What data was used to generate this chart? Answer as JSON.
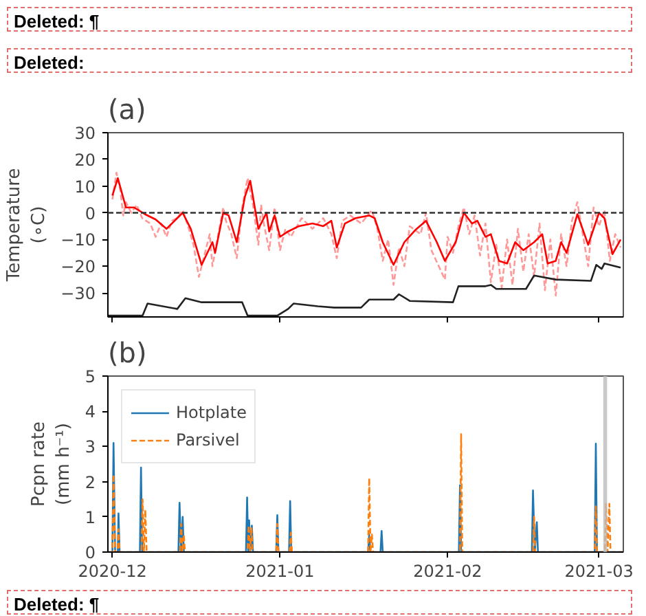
{
  "chart_data": [
    {
      "type": "line",
      "title": "(a)",
      "ylabel": "Temperature\n(∘C)",
      "annotations": [
        "Deleted: ¶",
        "Deleted:"
      ],
      "xlim": [
        "2020-11-30T04:00",
        "2021-03-05T12:00"
      ],
      "xticks": [
        "2020-12",
        "2021-01",
        "2021-02",
        "2021-03"
      ],
      "ylim": [
        -39,
        30
      ],
      "yticks": [
        -30,
        -20,
        -10,
        0,
        10,
        20,
        30
      ],
      "tick_labels": "y",
      "grid": false,
      "legend": false,
      "ref_lines": [
        {
          "axis": "y",
          "value": 0,
          "color": "#333333",
          "line_style": "dashed"
        }
      ],
      "series": [
        {
          "color": "#ff9999",
          "line_style": "dashed",
          "x": [
            "2020-12-01",
            "2020-12-01T18:00",
            "2020-12-02T12:00",
            "2020-12-03",
            "2020-12-03T12:00",
            "2020-12-04T12:00",
            "2020-12-05T12:00",
            "2020-12-06T12:00",
            "2020-12-08",
            "2020-12-09",
            "2020-12-10",
            "2020-12-11",
            "2020-12-12",
            "2020-12-13",
            "2020-12-14",
            "2020-12-15",
            "2020-12-16",
            "2020-12-17",
            "2020-12-18",
            "2020-12-19",
            "2020-12-19T12:00",
            "2020-12-20T12:00",
            "2020-12-21T12:00",
            "2020-12-22",
            "2020-12-23",
            "2020-12-24",
            "2020-12-25",
            "2020-12-26",
            "2020-12-27",
            "2020-12-28",
            "2020-12-28T12:00",
            "2020-12-29",
            "2020-12-30",
            "2020-12-31",
            "2021-01-01",
            "2021-01-02",
            "2021-01-03",
            "2021-01-05",
            "2021-01-07",
            "2021-01-09",
            "2021-01-10T12:00",
            "2021-01-11T12:00",
            "2021-01-12T12:00",
            "2021-01-14",
            "2021-01-16",
            "2021-01-18",
            "2021-01-19",
            "2021-01-20",
            "2021-01-21",
            "2021-01-22",
            "2021-01-23",
            "2021-01-24",
            "2021-01-25",
            "2021-01-27",
            "2021-01-28",
            "2021-01-29",
            "2021-01-31T12:00",
            "2021-02-01",
            "2021-02-02",
            "2021-02-03",
            "2021-02-04",
            "2021-02-05",
            "2021-02-06",
            "2021-02-07",
            "2021-02-08",
            "2021-02-09",
            "2021-02-10",
            "2021-02-11",
            "2021-02-12",
            "2021-02-13",
            "2021-02-14",
            "2021-02-15",
            "2021-02-16",
            "2021-02-17",
            "2021-02-18",
            "2021-02-19",
            "2021-02-20",
            "2021-02-21",
            "2021-02-22",
            "2021-02-23",
            "2021-02-24",
            "2021-02-25",
            "2021-02-26",
            "2021-02-27",
            "2021-02-28",
            "2021-03-01",
            "2021-03-02",
            "2021-03-03",
            "2021-03-04",
            "2021-03-05"
          ],
          "values": [
            5,
            15,
            8,
            -1,
            4,
            0,
            3,
            -2,
            -4,
            -9,
            -4,
            -9,
            -3,
            -2,
            1,
            -5,
            -12,
            -24,
            -16,
            -8,
            -20,
            -9,
            2,
            -3,
            -8,
            -17,
            2,
            13,
            3,
            -12,
            3,
            -4,
            -14,
            2,
            -14,
            -6,
            -9,
            -2,
            -6,
            -2,
            -8,
            -17,
            -3,
            -1,
            -4,
            1,
            -6,
            -18,
            -10,
            -27,
            -13,
            -20,
            -5,
            -8,
            0,
            -14,
            -25,
            -9,
            -15,
            -5,
            2,
            -8,
            -1,
            -16,
            -4,
            -26,
            -12,
            -28,
            -10,
            -27,
            -6,
            -22,
            -8,
            -24,
            -4,
            -29,
            -10,
            -31,
            -8,
            -20,
            -3,
            4,
            -8,
            -20,
            2,
            -5,
            1,
            -18,
            -8,
            -13
          ]
        },
        {
          "color": "#ff0000",
          "line_style": "solid",
          "x": [
            "2020-12-01",
            "2020-12-02",
            "2020-12-03T12:00",
            "2020-12-05",
            "2020-12-07",
            "2020-12-09",
            "2020-12-11",
            "2020-12-12",
            "2020-12-14",
            "2020-12-15T12:00",
            "2020-12-17T12:00",
            "2020-12-19T12:00",
            "2020-12-20",
            "2020-12-21T12:00",
            "2020-12-22T12:00",
            "2020-12-24",
            "2020-12-25T12:00",
            "2020-12-26T12:00",
            "2020-12-28",
            "2020-12-29T12:00",
            "2020-12-30",
            "2020-12-31",
            "2021-01-01",
            "2021-01-02T12:00",
            "2021-01-04T12:00",
            "2021-01-07",
            "2021-01-09",
            "2021-01-10T12:00",
            "2021-01-11T12:00",
            "2021-01-13",
            "2021-01-15",
            "2021-01-17T12:00",
            "2021-01-18T12:00",
            "2021-01-20",
            "2021-01-22",
            "2021-01-24",
            "2021-01-26",
            "2021-01-28",
            "2021-01-30",
            "2021-01-31T12:00",
            "2021-02-02T12:00",
            "2021-02-04",
            "2021-02-05T12:00",
            "2021-02-06T12:00",
            "2021-02-08",
            "2021-02-09",
            "2021-02-10T12:00",
            "2021-02-12",
            "2021-02-13T12:00",
            "2021-02-15",
            "2021-02-17",
            "2021-02-18T12:00",
            "2021-02-19T12:00",
            "2021-02-21",
            "2021-02-22",
            "2021-02-23",
            "2021-02-25",
            "2021-02-27",
            "2021-03-01",
            "2021-03-02",
            "2021-03-03T12:00",
            "2021-03-05"
          ],
          "values": [
            6.5,
            13,
            2,
            2,
            -0.5,
            -2.5,
            -6,
            -4,
            0,
            -6,
            -19.5,
            -11,
            -15,
            0,
            -1,
            -11,
            6,
            12,
            -6,
            0,
            -7,
            -1,
            -9,
            -7,
            -5,
            -4,
            -5,
            -3,
            -13,
            -4,
            -2,
            -1,
            -2,
            -11,
            -19.5,
            -11,
            -6.5,
            -3,
            -11,
            -18,
            -11,
            0,
            -4,
            -3,
            -9,
            -8,
            -18,
            -19,
            -11,
            -14,
            -11,
            -8,
            -19,
            -18,
            -11,
            -15,
            -0.5,
            -12,
            0,
            -2,
            -15.5,
            -10
          ]
        },
        {
          "color": "#222222",
          "line_style": "solid",
          "x": [
            "2020-11-30T06:00",
            "2020-12-06T14:00",
            "2020-12-07T12:00",
            "2020-12-13",
            "2020-12-14T12:00",
            "2020-12-17T12:00",
            "2020-12-21",
            "2020-12-25",
            "2020-12-26",
            "2020-12-31T12:00",
            "2021-01-02T12:00",
            "2021-01-03T12:00",
            "2021-01-08",
            "2021-01-11",
            "2021-01-16",
            "2021-01-17T12:00",
            "2021-01-22",
            "2021-01-23",
            "2021-01-25",
            "2021-02-02",
            "2021-02-03",
            "2021-02-08",
            "2021-02-09",
            "2021-02-10",
            "2021-02-15T12:00",
            "2021-02-17",
            "2021-02-21",
            "2021-02-27T12:00",
            "2021-02-28T12:00",
            "2021-03-01T12:00",
            "2021-03-02",
            "2021-03-05"
          ],
          "values": [
            -38.5,
            -38.5,
            -34,
            -36,
            -32,
            -33.5,
            -33.5,
            -33.5,
            -38.5,
            -38.5,
            -36,
            -34,
            -35,
            -35.5,
            -35.5,
            -32.5,
            -32.5,
            -30.5,
            -33,
            -33.5,
            -27.5,
            -27.5,
            -27,
            -28.5,
            -28.5,
            -23.5,
            -25,
            -25.5,
            -19.5,
            -21,
            -19,
            -20.5
          ]
        }
      ]
    },
    {
      "type": "line",
      "title": "(b)",
      "ylabel": "Pcpn rate\n(mm h⁻¹)",
      "annotations": [
        "Deleted: ¶"
      ],
      "xlim": [
        "2020-11-30T04:00",
        "2021-03-05T12:00"
      ],
      "xticks": [
        "2020-12",
        "2021-01",
        "2021-02",
        "2021-03"
      ],
      "ylim": [
        0,
        5
      ],
      "yticks": [
        0,
        1,
        2,
        3,
        4,
        5
      ],
      "grid": false,
      "legend": "top left",
      "bands": [
        {
          "axis": "x",
          "from": "2021-03-01T19:00",
          "to": "2021-03-02T12:00",
          "color": "#bbbbbb"
        }
      ],
      "series": [
        {
          "name": "Hotplate",
          "color": "#1f77b4",
          "line_style": "solid",
          "x": [
            "2020-11-30T06:00",
            "2020-12-01",
            "2020-12-01T05:00",
            "2020-12-01T12:00",
            "2020-12-02",
            "2020-12-02T03:00",
            "2020-12-02T08:00",
            "2020-12-06T02:00",
            "2020-12-06T07:00",
            "2020-12-06T12:00",
            "2020-12-13T05:00",
            "2020-12-13T10:00",
            "2020-12-13T17:00",
            "2020-12-14",
            "2020-12-14T05:00",
            "2020-12-25T17:00",
            "2020-12-25T22:00",
            "2020-12-26T03:00",
            "2020-12-26T07:00",
            "2020-12-26T12:00",
            "2020-12-26T19:00",
            "2020-12-27",
            "2020-12-31T07:00",
            "2020-12-31T12:00",
            "2020-12-31T17:00",
            "2021-01-02T16:00",
            "2021-01-02T21:00",
            "2021-01-03T02:00",
            "2021-01-17T07:00",
            "2021-01-17T12:00",
            "2021-01-17T17:00",
            "2021-01-19T14:00",
            "2021-01-19T19:00",
            "2021-01-20",
            "2021-02-03T02:00",
            "2021-02-03T07:00",
            "2021-02-03T12:00",
            "2021-02-16T14:00",
            "2021-02-16T19:00",
            "2021-02-17T03:00",
            "2021-02-17T12:00",
            "2021-02-17T17:00",
            "2021-02-28T05:00",
            "2021-02-28T10:00",
            "2021-02-28T15:00",
            "2021-03-05T12:00"
          ],
          "values": [
            0,
            0,
            3.1,
            0,
            0,
            1.1,
            0,
            0,
            2.4,
            0,
            0,
            1.4,
            0,
            1.0,
            0,
            0,
            1.55,
            0,
            0.9,
            0,
            0.75,
            0,
            0,
            1.05,
            0,
            0,
            1.45,
            0,
            0,
            0.5,
            0,
            0,
            0.6,
            0,
            0,
            1.9,
            0,
            0,
            1.75,
            0,
            0.85,
            0,
            0,
            3.08,
            0,
            0
          ]
        },
        {
          "name": "Parsivel",
          "color": "#ff7f0e",
          "line_style": "dashed",
          "x": [
            "2020-11-30T06:00",
            "2020-12-01",
            "2020-12-01T05:00",
            "2020-12-01T12:00",
            "2020-12-02",
            "2020-12-02T03:00",
            "2020-12-02T08:00",
            "2020-12-06T09:00",
            "2020-12-06T14:00",
            "2020-12-06T20:00",
            "2020-12-07T02:00",
            "2020-12-07T08:00",
            "2020-12-13T12:00",
            "2020-12-13T17:00",
            "2020-12-13T23:00",
            "2020-12-14T05:00",
            "2020-12-14T10:00",
            "2020-12-26",
            "2020-12-26T05:00",
            "2020-12-26T11:00",
            "2020-12-26T17:00",
            "2020-12-26T22:00",
            "2020-12-31T07:00",
            "2020-12-31T12:00",
            "2020-12-31T17:00",
            "2021-01-02T19:00",
            "2021-01-03",
            "2021-01-03T05:00",
            "2021-01-17T07:00",
            "2021-01-17T12:00",
            "2021-01-17T18:00",
            "2021-01-18",
            "2021-01-18T05:00",
            "2021-02-03T07:00",
            "2021-02-03T12:00",
            "2021-02-03T17:00",
            "2021-02-16T19:00",
            "2021-02-17",
            "2021-02-17T05:00",
            "2021-02-28T05:00",
            "2021-02-28T10:00",
            "2021-02-28T15:00",
            "2021-03-02T02:00",
            "2021-03-02T07:00",
            "2021-03-02T14:00",
            "2021-03-02T22:00",
            "2021-03-03T03:00",
            "2021-03-05T12:00"
          ],
          "values": [
            0,
            0,
            2.2,
            0,
            0,
            0.65,
            0,
            0,
            1.5,
            0,
            1.2,
            0,
            0,
            0.8,
            0,
            0.5,
            0,
            0,
            0.75,
            0,
            0.7,
            0,
            0,
            0.8,
            0,
            0,
            0.55,
            0,
            0,
            2.1,
            0,
            0.5,
            0,
            0,
            3.35,
            0,
            0,
            1.0,
            0,
            0,
            1.3,
            0,
            0,
            1.37,
            0,
            1.37,
            0,
            0
          ]
        }
      ]
    }
  ]
}
